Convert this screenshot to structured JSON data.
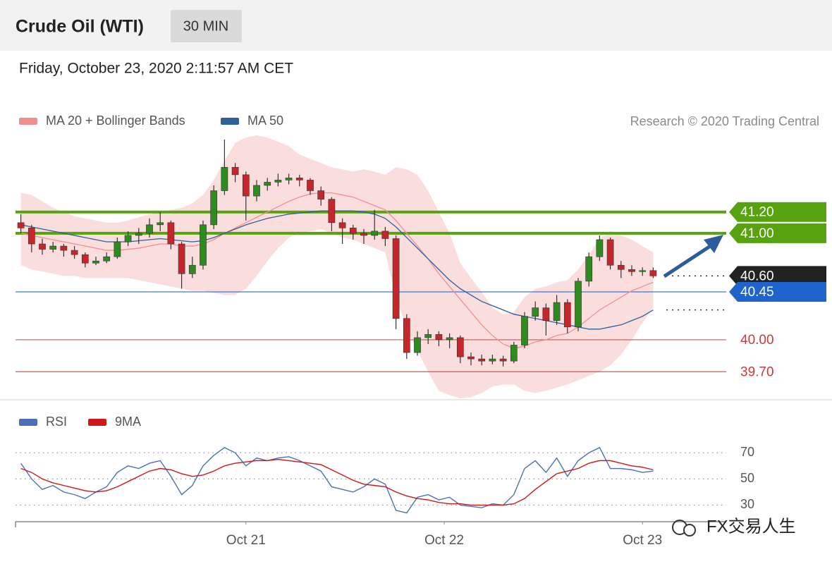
{
  "header": {
    "title": "Crude Oil (WTI)",
    "interval": "30 MIN",
    "timestamp": "Friday, October 23, 2020 2:11:57 AM CET"
  },
  "watermark": "FX交易人生",
  "chart_data": [
    {
      "type": "candlestick",
      "credit": "Research © 2020 Trading Central",
      "xlim": [
        -0.5,
        59.5
      ],
      "ylim": [
        39.45,
        41.9
      ],
      "up_color": "#2f8a1f",
      "down_color": "#c3262b",
      "band_color": "#f9dada",
      "candles": [
        [
          41.1,
          41.18,
          41.0,
          41.05
        ],
        [
          41.05,
          41.08,
          40.82,
          40.9
        ],
        [
          40.9,
          40.95,
          40.8,
          40.85
        ],
        [
          40.85,
          40.92,
          40.82,
          40.88
        ],
        [
          40.88,
          40.9,
          40.78,
          40.84
        ],
        [
          40.84,
          40.88,
          40.76,
          40.8
        ],
        [
          40.8,
          40.82,
          40.68,
          40.72
        ],
        [
          40.72,
          40.78,
          40.7,
          40.74
        ],
        [
          40.74,
          40.82,
          40.72,
          40.78
        ],
        [
          40.78,
          40.96,
          40.76,
          40.92
        ],
        [
          40.92,
          41.02,
          40.88,
          40.98
        ],
        [
          40.98,
          41.05,
          40.9,
          41.0
        ],
        [
          41.0,
          41.14,
          40.96,
          41.08
        ],
        [
          41.08,
          41.2,
          41.02,
          41.1
        ],
        [
          41.1,
          41.12,
          40.85,
          40.9
        ],
        [
          40.9,
          40.92,
          40.48,
          40.62
        ],
        [
          40.62,
          40.78,
          40.58,
          40.7
        ],
        [
          40.7,
          41.12,
          40.66,
          41.08
        ],
        [
          41.08,
          41.45,
          41.04,
          41.4
        ],
        [
          41.4,
          41.88,
          41.36,
          41.62
        ],
        [
          41.62,
          41.66,
          41.48,
          41.55
        ],
        [
          41.55,
          41.58,
          41.12,
          41.35
        ],
        [
          41.35,
          41.5,
          41.3,
          41.45
        ],
        [
          41.45,
          41.52,
          41.4,
          41.48
        ],
        [
          41.48,
          41.56,
          41.44,
          41.5
        ],
        [
          41.5,
          41.56,
          41.46,
          41.52
        ],
        [
          41.52,
          41.55,
          41.44,
          41.5
        ],
        [
          41.5,
          41.52,
          41.36,
          41.4
        ],
        [
          41.4,
          41.44,
          41.26,
          41.32
        ],
        [
          41.32,
          41.34,
          41.02,
          41.1
        ],
        [
          41.1,
          41.14,
          40.9,
          41.05
        ],
        [
          41.05,
          41.08,
          40.94,
          41.0
        ],
        [
          41.0,
          41.04,
          40.9,
          40.98
        ],
        [
          40.98,
          41.22,
          40.94,
          41.02
        ],
        [
          41.02,
          41.06,
          40.88,
          40.95
        ],
        [
          40.95,
          40.98,
          40.1,
          40.2
        ],
        [
          40.2,
          40.24,
          39.82,
          39.88
        ],
        [
          39.88,
          40.08,
          39.85,
          40.02
        ],
        [
          40.02,
          40.1,
          39.96,
          40.05
        ],
        [
          40.05,
          40.08,
          39.94,
          40.0
        ],
        [
          40.0,
          40.06,
          39.92,
          40.02
        ],
        [
          40.02,
          40.04,
          39.78,
          39.84
        ],
        [
          39.84,
          39.88,
          39.76,
          39.82
        ],
        [
          39.82,
          39.86,
          39.76,
          39.8
        ],
        [
          39.8,
          39.86,
          39.77,
          39.82
        ],
        [
          39.82,
          39.85,
          39.75,
          39.8
        ],
        [
          39.8,
          39.98,
          39.78,
          39.95
        ],
        [
          39.95,
          40.26,
          39.92,
          40.22
        ],
        [
          40.22,
          40.36,
          40.18,
          40.3
        ],
        [
          40.3,
          40.34,
          40.04,
          40.18
        ],
        [
          40.18,
          40.42,
          40.14,
          40.35
        ],
        [
          40.35,
          40.38,
          40.06,
          40.12
        ],
        [
          40.12,
          40.58,
          40.08,
          40.55
        ],
        [
          40.55,
          40.82,
          40.5,
          40.78
        ],
        [
          40.78,
          40.98,
          40.74,
          40.94
        ],
        [
          40.94,
          40.96,
          40.66,
          40.7
        ],
        [
          40.7,
          40.74,
          40.58,
          40.66
        ],
        [
          40.66,
          40.7,
          40.6,
          40.64
        ],
        [
          40.64,
          40.68,
          40.6,
          40.65
        ],
        [
          40.65,
          40.68,
          40.58,
          40.6
        ]
      ],
      "series": [
        {
          "name": "MA 20 + Bollinger Bands",
          "color": "#ef8f8f",
          "values": [
            41.0,
            40.98,
            40.96,
            40.94,
            40.92,
            40.9,
            40.88,
            40.86,
            40.84,
            40.84,
            40.85,
            40.86,
            40.88,
            40.9,
            40.9,
            40.88,
            40.88,
            40.9,
            40.94,
            41.0,
            41.05,
            41.1,
            41.15,
            41.2,
            41.25,
            41.3,
            41.34,
            41.37,
            41.38,
            41.38,
            41.36,
            41.34,
            41.3,
            41.26,
            41.22,
            41.12,
            41.0,
            40.88,
            40.76,
            40.62,
            40.5,
            40.38,
            40.26,
            40.14,
            40.04,
            39.96,
            39.92,
            39.94,
            39.98,
            40.0,
            40.04,
            40.06,
            40.12,
            40.2,
            40.28,
            40.34,
            40.4,
            40.46,
            40.5,
            40.54
          ],
          "upper": [
            41.38,
            41.36,
            41.3,
            41.24,
            41.2,
            41.16,
            41.14,
            41.12,
            41.1,
            41.1,
            41.12,
            41.15,
            41.18,
            41.2,
            41.22,
            41.24,
            41.28,
            41.36,
            41.5,
            41.68,
            41.85,
            41.9,
            41.92,
            41.9,
            41.86,
            41.82,
            41.74,
            41.7,
            41.66,
            41.62,
            41.6,
            41.58,
            41.6,
            41.58,
            41.55,
            41.62,
            41.6,
            41.55,
            41.4,
            41.2,
            41.0,
            40.72,
            40.58,
            40.45,
            40.3,
            40.24,
            40.26,
            40.4,
            40.48,
            40.5,
            40.54,
            40.56,
            40.66,
            40.8,
            40.95,
            41.02,
            40.98,
            40.94,
            40.88,
            40.82
          ],
          "lower": [
            40.7,
            40.66,
            40.64,
            40.62,
            40.6,
            40.6,
            40.58,
            40.58,
            40.58,
            40.58,
            40.58,
            40.56,
            40.54,
            40.52,
            40.5,
            40.48,
            40.46,
            40.46,
            40.44,
            40.42,
            40.42,
            40.48,
            40.6,
            40.74,
            40.86,
            40.96,
            41.0,
            41.02,
            41.04,
            41.0,
            40.96,
            40.94,
            40.9,
            40.86,
            40.82,
            40.4,
            40.1,
            39.9,
            39.7,
            39.52,
            39.48,
            39.45,
            39.46,
            39.5,
            39.56,
            39.58,
            39.58,
            39.52,
            39.5,
            39.52,
            39.55,
            39.58,
            39.62,
            39.66,
            39.7,
            39.76,
            39.86,
            40.0,
            40.16,
            40.3
          ]
        },
        {
          "name": "MA 50",
          "color": "#2f5f99",
          "values": [
            41.08,
            41.06,
            41.04,
            41.02,
            41.0,
            40.98,
            40.96,
            40.94,
            40.92,
            40.92,
            40.92,
            40.93,
            40.94,
            40.95,
            40.94,
            40.93,
            40.92,
            40.93,
            40.96,
            41.0,
            41.04,
            41.08,
            41.11,
            41.14,
            41.16,
            41.18,
            41.19,
            41.2,
            41.21,
            41.21,
            41.21,
            41.21,
            41.2,
            41.18,
            41.14,
            41.06,
            40.96,
            40.86,
            40.76,
            40.66,
            40.56,
            40.48,
            40.42,
            40.36,
            40.32,
            40.28,
            40.24,
            40.22,
            40.2,
            40.18,
            40.16,
            40.14,
            40.12,
            40.1,
            40.1,
            40.12,
            40.14,
            40.18,
            40.22,
            40.28
          ]
        }
      ],
      "levels": [
        {
          "value": 41.2,
          "label": "41.20",
          "color": "#56a30f",
          "line": "thick",
          "box": true
        },
        {
          "value": 41.0,
          "label": "41.00",
          "color": "#56a30f",
          "line": "thick",
          "box": true
        },
        {
          "value": 40.6,
          "label": "40.60",
          "color": "#222222",
          "line": "dotted",
          "box": true
        },
        {
          "value": 40.45,
          "label": "40.45",
          "color": "#1f63cc",
          "line": "thin",
          "box": true
        },
        {
          "value": 40.0,
          "label": "40.00",
          "color": "#c83a3a",
          "line": "thin",
          "box": false
        },
        {
          "value": 39.7,
          "label": "39.70",
          "color": "#c83a3a",
          "line": "thin",
          "box": false
        }
      ]
    },
    {
      "type": "line",
      "xlim": [
        -0.5,
        59.5
      ],
      "ylim": [
        20,
        82
      ],
      "yticks": [
        30,
        50,
        70
      ],
      "grid": true,
      "xticks": [
        {
          "value": 21,
          "label": "Oct 21"
        },
        {
          "value": 39.5,
          "label": "Oct 22"
        },
        {
          "value": 58,
          "label": "Oct 23"
        }
      ],
      "series": [
        {
          "name": "RSI",
          "color": "#4d6fb8",
          "values": [
            62,
            50,
            42,
            45,
            40,
            38,
            35,
            40,
            44,
            55,
            60,
            58,
            62,
            64,
            52,
            38,
            45,
            60,
            68,
            74,
            70,
            60,
            66,
            64,
            66,
            67,
            64,
            60,
            56,
            44,
            42,
            40,
            44,
            50,
            46,
            26,
            24,
            36,
            38,
            34,
            36,
            30,
            29,
            28,
            31,
            30,
            38,
            58,
            64,
            55,
            66,
            52,
            64,
            70,
            74,
            58,
            58,
            57,
            55,
            56
          ]
        },
        {
          "name": "9MA",
          "color": "#d01818",
          "values": [
            58,
            55,
            50,
            47,
            45,
            43,
            41,
            40,
            41,
            44,
            48,
            52,
            56,
            58,
            57,
            54,
            52,
            53,
            56,
            60,
            62,
            63,
            64,
            64,
            65,
            64,
            63,
            62,
            61,
            57,
            53,
            49,
            46,
            45,
            44,
            40,
            37,
            35,
            34,
            32,
            31,
            31,
            30,
            30,
            30,
            30,
            31,
            35,
            42,
            48,
            54,
            56,
            58,
            62,
            64,
            64,
            62,
            60,
            59,
            57
          ]
        }
      ]
    }
  ]
}
